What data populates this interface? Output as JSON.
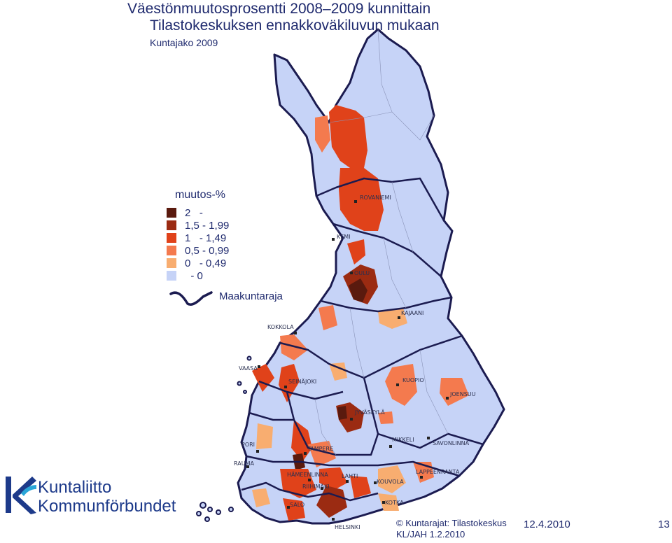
{
  "title": {
    "line1": "Väestönmuutosprosentti 2008–2009 kunnittain",
    "line2": "Tilastokeskuksen ennakkoväkiluvun mukaan",
    "subtitle": "Kuntajako 2009"
  },
  "legend": {
    "title": "muutos-%",
    "items": [
      {
        "label": "2   -",
        "color": "#5a1a0e"
      },
      {
        "label": "1,5 - 1,99",
        "color": "#9b2b12"
      },
      {
        "label": "1   - 1,49",
        "color": "#e0421a"
      },
      {
        "label": "0,5 - 0,99",
        "color": "#f47a4e"
      },
      {
        "label": "0   - 0,49",
        "color": "#f8ad70"
      },
      {
        "label": "  - 0",
        "color": "#c6d3f7"
      }
    ],
    "boundary_label": "Maakuntaraja",
    "boundary_color": "#1b1b50"
  },
  "cities": {
    "rovaniemi": "ROVANIEMI",
    "kemi": "KEMI",
    "oulu": "OULU",
    "kajaani": "KAJAANI",
    "kokkola": "KOKKOLA",
    "vaasa": "VAASA",
    "seinajoki": "SEINÄJOKI",
    "kuopio": "KUOPIO",
    "joensuu": "JOENSUU",
    "jyvaskyla": "JYVÄSKYLÄ",
    "pori": "PORI",
    "tampere": "TAMPERE",
    "mikkeli": "MIKKELI",
    "savonlinna": "SAVONLINNA",
    "rauma": "RAUMA",
    "hameenlinna": "HÄMEENLINNA",
    "lahti": "LAHTI",
    "lappeenranta": "LAPPEENRANTA",
    "riihimaki": "RIIHIMÄKI",
    "kouvola": "KOUVOLA",
    "salo": "SALO",
    "kotka": "KOTKA",
    "helsinki": "HELSINKI"
  },
  "logo": {
    "line1": "Kuntaliitto",
    "line2": "Kommunförbundet"
  },
  "footer": {
    "credit_line1": "© Kuntarajat: Tilastokeskus",
    "credit_line2": "KL/JAH 1.2.2010",
    "date": "12.4.2010",
    "page": "13"
  }
}
